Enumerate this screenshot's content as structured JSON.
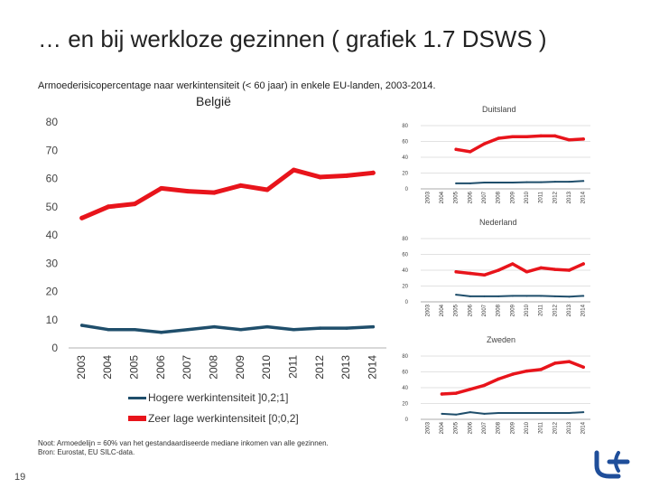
{
  "slide": {
    "title": "… en bij werkloze gezinnen ( grafiek 1.7 DSWS )",
    "subtitle": "Armoederisicopercentage naar werkintensiteit (< 60 jaar) in enkele EU-landen, 2003-2014.",
    "note_line1": "Noot: Armoedelijn = 60% van het gestandaardiseerde mediane inkomen van alle gezinnen.",
    "note_line2": "Bron: Eurostat, EU SILC-data.",
    "page_number": "19"
  },
  "colors": {
    "high": "#1f4e6b",
    "low": "#e8141b",
    "grid": "#d9d9d9",
    "axis": "#999999"
  },
  "legend": [
    {
      "label": "Hogere werkintensiteit ]0,2;1]",
      "color": "#1f4e6b"
    },
    {
      "label": "Zeer lage werkintensiteit [0;0,2]",
      "color": "#e8141b"
    }
  ],
  "chart_data": [
    {
      "type": "line",
      "title": "België",
      "categories": [
        "2003",
        "2004",
        "2005",
        "2006",
        "2007",
        "2008",
        "2009",
        "2010",
        "2011",
        "2012",
        "2013",
        "2014"
      ],
      "ylim": [
        0,
        80
      ],
      "yticks": [
        "0",
        "10",
        "20",
        "30",
        "40",
        "50",
        "60",
        "70",
        "80"
      ],
      "grid": false,
      "series": [
        {
          "name": "Zeer lage werkintensiteit [0;0,2]",
          "values": [
            46,
            50,
            51,
            56.5,
            55.5,
            55,
            57.5,
            56,
            63,
            60.5,
            61,
            62
          ]
        },
        {
          "name": "Hogere werkintensiteit ]0,2;1]",
          "values": [
            8,
            6.5,
            6.5,
            5.5,
            6.5,
            7.5,
            6.5,
            7.5,
            6.5,
            7,
            7,
            7.5
          ]
        }
      ]
    },
    {
      "type": "line",
      "title": "Duitsland",
      "categories": [
        "2003",
        "2004",
        "2005",
        "2006",
        "2007",
        "2008",
        "2009",
        "2010",
        "2011",
        "2012",
        "2013",
        "2014"
      ],
      "ylim": [
        0,
        80
      ],
      "yticks": [
        "0",
        "20",
        "40",
        "60",
        "80"
      ],
      "grid": true,
      "series": [
        {
          "name": "Zeer lage werkintensiteit [0;0,2]",
          "values": [
            null,
            null,
            50,
            47,
            57,
            64,
            66,
            66,
            67,
            67,
            62,
            63
          ]
        },
        {
          "name": "Hogere werkintensiteit ]0,2;1]",
          "values": [
            null,
            null,
            7,
            7,
            8,
            8,
            8,
            8.5,
            8.5,
            9,
            9,
            10
          ]
        }
      ]
    },
    {
      "type": "line",
      "title": "Nederland",
      "categories": [
        "2003",
        "2004",
        "2005",
        "2006",
        "2007",
        "2008",
        "2009",
        "2010",
        "2011",
        "2012",
        "2013",
        "2014"
      ],
      "ylim": [
        0,
        80
      ],
      "yticks": [
        "0",
        "20",
        "40",
        "60",
        "80"
      ],
      "grid": true,
      "series": [
        {
          "name": "Zeer lage werkintensiteit [0;0,2]",
          "values": [
            null,
            null,
            38,
            36,
            34,
            40,
            48,
            38,
            43,
            41,
            40,
            48
          ]
        },
        {
          "name": "Hogere werkintensiteit ]0,2;1]",
          "values": [
            null,
            null,
            9,
            7,
            7,
            7,
            7.5,
            7.5,
            7.5,
            7,
            6.5,
            7.5
          ]
        }
      ]
    },
    {
      "type": "line",
      "title": "Zweden",
      "categories": [
        "2003",
        "2004",
        "2005",
        "2006",
        "2007",
        "2008",
        "2009",
        "2010",
        "2011",
        "2012",
        "2013",
        "2014"
      ],
      "ylim": [
        0,
        80
      ],
      "yticks": [
        "0",
        "20",
        "40",
        "60",
        "80"
      ],
      "grid": true,
      "series": [
        {
          "name": "Zeer lage werkintensiteit [0;0,2]",
          "values": [
            null,
            32,
            33,
            38,
            43,
            51,
            57,
            61,
            63,
            71,
            73,
            66
          ]
        },
        {
          "name": "Hogere werkintensiteit ]0,2;1]",
          "values": [
            null,
            7,
            6,
            9,
            7,
            8,
            8,
            8,
            8,
            8,
            8,
            9
          ]
        }
      ]
    }
  ]
}
